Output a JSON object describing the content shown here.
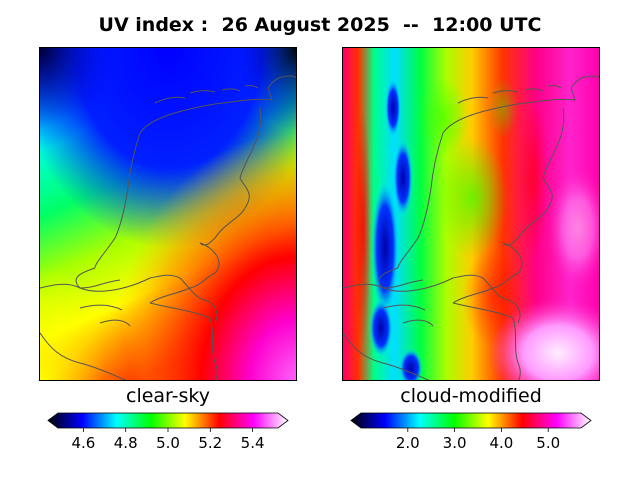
{
  "title": "UV index :  26 August 2025  --  12:00 UTC",
  "panels": [
    {
      "label": "clear-sky",
      "colorbar": {
        "min": 4.48,
        "max": 5.52,
        "ticks": [
          "4.6",
          "4.8",
          "5.0",
          "5.2",
          "5.4"
        ]
      }
    },
    {
      "label": "cloud-modified",
      "colorbar": {
        "min": 1.0,
        "max": 5.7,
        "ticks": [
          "2.0",
          "3.0",
          "4.0",
          "5.0"
        ]
      }
    }
  ],
  "colormap": [
    "#000000",
    "#0000ff",
    "#00ffff",
    "#00ff00",
    "#ffff00",
    "#ff0000",
    "#ff00ff",
    "#ffffff"
  ],
  "coastline_color": "#555555"
}
